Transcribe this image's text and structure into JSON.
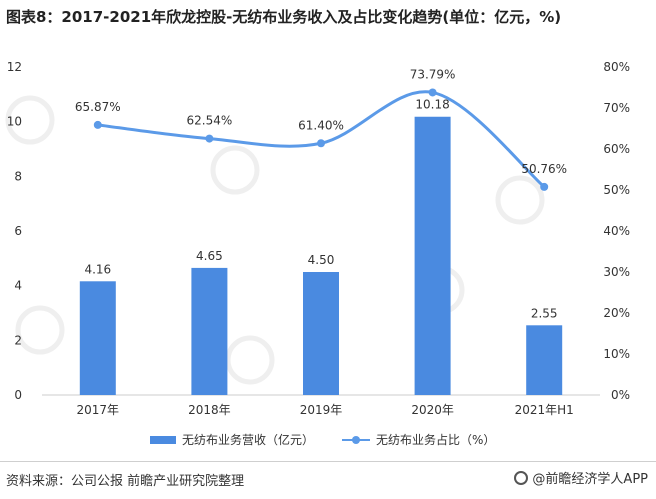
{
  "title": "图表8：2017-2021年欣龙控股-无纺布业务收入及占比变化趋势(单位：亿元，%)",
  "footer": {
    "source": "资料来源：公司公报 前瞻产业研究院整理",
    "brand": "@前瞻经济学人APP"
  },
  "legend": {
    "bar_label": "无纺布业务营收（亿元）",
    "line_label": "无纺布业务占比（%）"
  },
  "colors": {
    "bar": "#4a8ae0",
    "line": "#5b9ae8"
  },
  "chart_data": {
    "type": "bar",
    "categories": [
      "2017年",
      "2018年",
      "2019年",
      "2020年",
      "2021年H1"
    ],
    "series": [
      {
        "name": "无纺布业务营收（亿元）",
        "type": "bar",
        "axis": "left",
        "values": [
          4.16,
          4.65,
          4.5,
          10.18,
          2.55
        ],
        "labels": [
          "4.16",
          "4.65",
          "4.50",
          "10.18",
          "2.55"
        ]
      },
      {
        "name": "无纺布业务占比（%）",
        "type": "line",
        "axis": "right",
        "values": [
          65.87,
          62.54,
          61.4,
          73.79,
          50.76
        ],
        "labels": [
          "65.87%",
          "62.54%",
          "61.40%",
          "73.79%",
          "50.76%"
        ]
      }
    ],
    "y_left": {
      "ylim": [
        0,
        12
      ],
      "ticks": [
        "0",
        "2",
        "4",
        "6",
        "8",
        "10",
        "12"
      ]
    },
    "y_right": {
      "ylim": [
        0,
        80
      ],
      "ticks": [
        "0%",
        "10%",
        "20%",
        "30%",
        "40%",
        "50%",
        "60%",
        "70%",
        "80%"
      ]
    },
    "legend_position": "bottom"
  }
}
